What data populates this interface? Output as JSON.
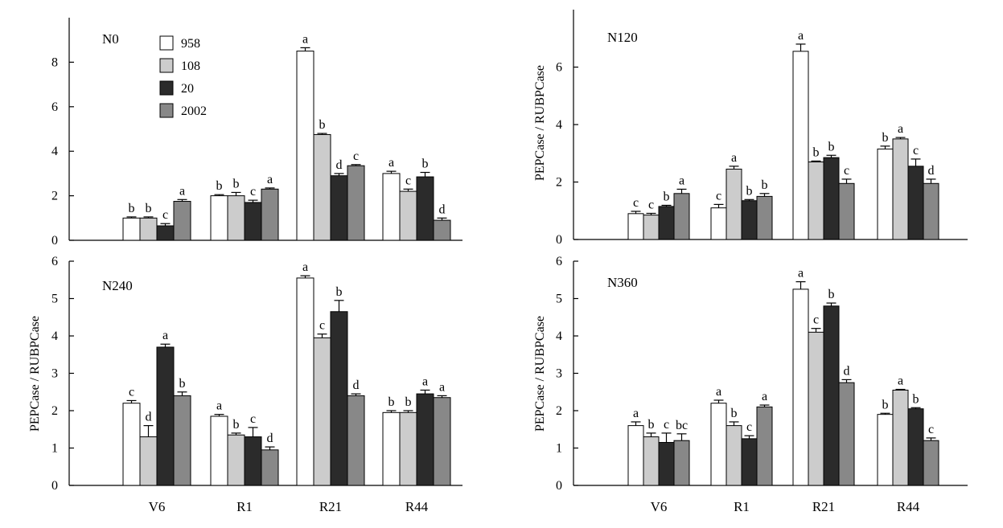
{
  "chart_data": [
    {
      "type": "bar",
      "panel_label": "N0",
      "categories": [
        "V6",
        "R1",
        "R21",
        "R44"
      ],
      "ylim": [
        0,
        10
      ],
      "yticks": [
        0,
        2,
        4,
        6,
        8
      ],
      "ylabel": "",
      "series": [
        {
          "name": "958",
          "values": [
            1.0,
            2.0,
            8.5,
            3.0
          ],
          "errors": [
            0.05,
            0.05,
            0.15,
            0.1
          ],
          "letters": [
            "b",
            "b",
            "a",
            "a"
          ],
          "color": "#ffffff"
        },
        {
          "name": "108",
          "values": [
            1.0,
            2.0,
            4.75,
            2.2
          ],
          "errors": [
            0.05,
            0.15,
            0.05,
            0.1
          ],
          "letters": [
            "b",
            "b",
            "b",
            "c"
          ],
          "color": "#cccccc"
        },
        {
          "name": "20",
          "values": [
            0.65,
            1.7,
            2.9,
            2.85
          ],
          "errors": [
            0.1,
            0.1,
            0.1,
            0.2
          ],
          "letters": [
            "c",
            "c",
            "d",
            "b"
          ],
          "color": "#2b2b2b"
        },
        {
          "name": "2002",
          "values": [
            1.75,
            2.3,
            3.35,
            0.9
          ],
          "errors": [
            0.08,
            0.05,
            0.05,
            0.1
          ],
          "letters": [
            "a",
            "a",
            "c",
            "d"
          ],
          "color": "#888888"
        }
      ]
    },
    {
      "type": "bar",
      "panel_label": "N120",
      "categories": [
        "V6",
        "R1",
        "R21",
        "R44"
      ],
      "ylim": [
        0,
        8
      ],
      "yticks": [
        0,
        2,
        4,
        6
      ],
      "ylabel": "PEPCase / RUBPCase",
      "series": [
        {
          "name": "958",
          "values": [
            0.9,
            1.1,
            6.55,
            3.15
          ],
          "errors": [
            0.08,
            0.12,
            0.25,
            0.1
          ],
          "letters": [
            "c",
            "c",
            "a",
            "b"
          ],
          "color": "#ffffff"
        },
        {
          "name": "108",
          "values": [
            0.85,
            2.45,
            2.7,
            3.5
          ],
          "errors": [
            0.06,
            0.1,
            0.03,
            0.05
          ],
          "letters": [
            "c",
            "a",
            "b",
            "a"
          ],
          "color": "#cccccc"
        },
        {
          "name": "20",
          "values": [
            1.15,
            1.35,
            2.85,
            2.55
          ],
          "errors": [
            0.04,
            0.04,
            0.08,
            0.25
          ],
          "letters": [
            "b",
            "b",
            "b",
            "c"
          ],
          "color": "#2b2b2b"
        },
        {
          "name": "2002",
          "values": [
            1.6,
            1.5,
            1.95,
            1.95
          ],
          "errors": [
            0.15,
            0.1,
            0.15,
            0.15
          ],
          "letters": [
            "a",
            "b",
            "c",
            "d"
          ],
          "color": "#888888"
        }
      ]
    },
    {
      "type": "bar",
      "panel_label": "N240",
      "categories": [
        "V6",
        "R1",
        "R21",
        "R44"
      ],
      "ylim": [
        0,
        6
      ],
      "yticks": [
        0,
        1,
        2,
        3,
        4,
        5,
        6
      ],
      "ylabel": "PEPCase / RUBPCase",
      "series": [
        {
          "name": "958",
          "values": [
            2.2,
            1.85,
            5.55,
            1.95
          ],
          "errors": [
            0.07,
            0.05,
            0.06,
            0.05
          ],
          "letters": [
            "c",
            "a",
            "a",
            "b"
          ],
          "color": "#ffffff"
        },
        {
          "name": "108",
          "values": [
            1.3,
            1.35,
            3.95,
            1.95
          ],
          "errors": [
            0.3,
            0.05,
            0.1,
            0.05
          ],
          "letters": [
            "d",
            "b",
            "c",
            "b"
          ],
          "color": "#cccccc"
        },
        {
          "name": "20",
          "values": [
            3.7,
            1.3,
            4.65,
            2.45
          ],
          "errors": [
            0.08,
            0.25,
            0.3,
            0.1
          ],
          "letters": [
            "a",
            "c",
            "b",
            "a"
          ],
          "color": "#2b2b2b"
        },
        {
          "name": "2002",
          "values": [
            2.4,
            0.95,
            2.4,
            2.35
          ],
          "errors": [
            0.1,
            0.08,
            0.05,
            0.05
          ],
          "letters": [
            "b",
            "d",
            "d",
            "a"
          ],
          "color": "#888888"
        }
      ]
    },
    {
      "type": "bar",
      "panel_label": "N360",
      "categories": [
        "V6",
        "R1",
        "R21",
        "R44"
      ],
      "ylim": [
        0,
        6
      ],
      "yticks": [
        0,
        1,
        2,
        3,
        4,
        5,
        6
      ],
      "ylabel": "PEPCase / RUBPCase",
      "series": [
        {
          "name": "958",
          "values": [
            1.6,
            2.2,
            5.25,
            1.9
          ],
          "errors": [
            0.1,
            0.08,
            0.2,
            0.03
          ],
          "letters": [
            "a",
            "a",
            "a",
            "b"
          ],
          "color": "#ffffff"
        },
        {
          "name": "108",
          "values": [
            1.3,
            1.6,
            4.1,
            2.55
          ],
          "errors": [
            0.1,
            0.1,
            0.1,
            0.02
          ],
          "letters": [
            "b",
            "b",
            "c",
            "a"
          ],
          "color": "#cccccc"
        },
        {
          "name": "20",
          "values": [
            1.15,
            1.25,
            4.8,
            2.05
          ],
          "errors": [
            0.25,
            0.08,
            0.08,
            0.03
          ],
          "letters": [
            "c",
            "c",
            "b",
            "b"
          ],
          "color": "#2b2b2b"
        },
        {
          "name": "2002",
          "values": [
            1.2,
            2.1,
            2.75,
            1.2
          ],
          "errors": [
            0.18,
            0.05,
            0.08,
            0.07
          ],
          "letters": [
            "bc",
            "a",
            "d",
            "c"
          ],
          "color": "#888888"
        }
      ]
    }
  ]
}
